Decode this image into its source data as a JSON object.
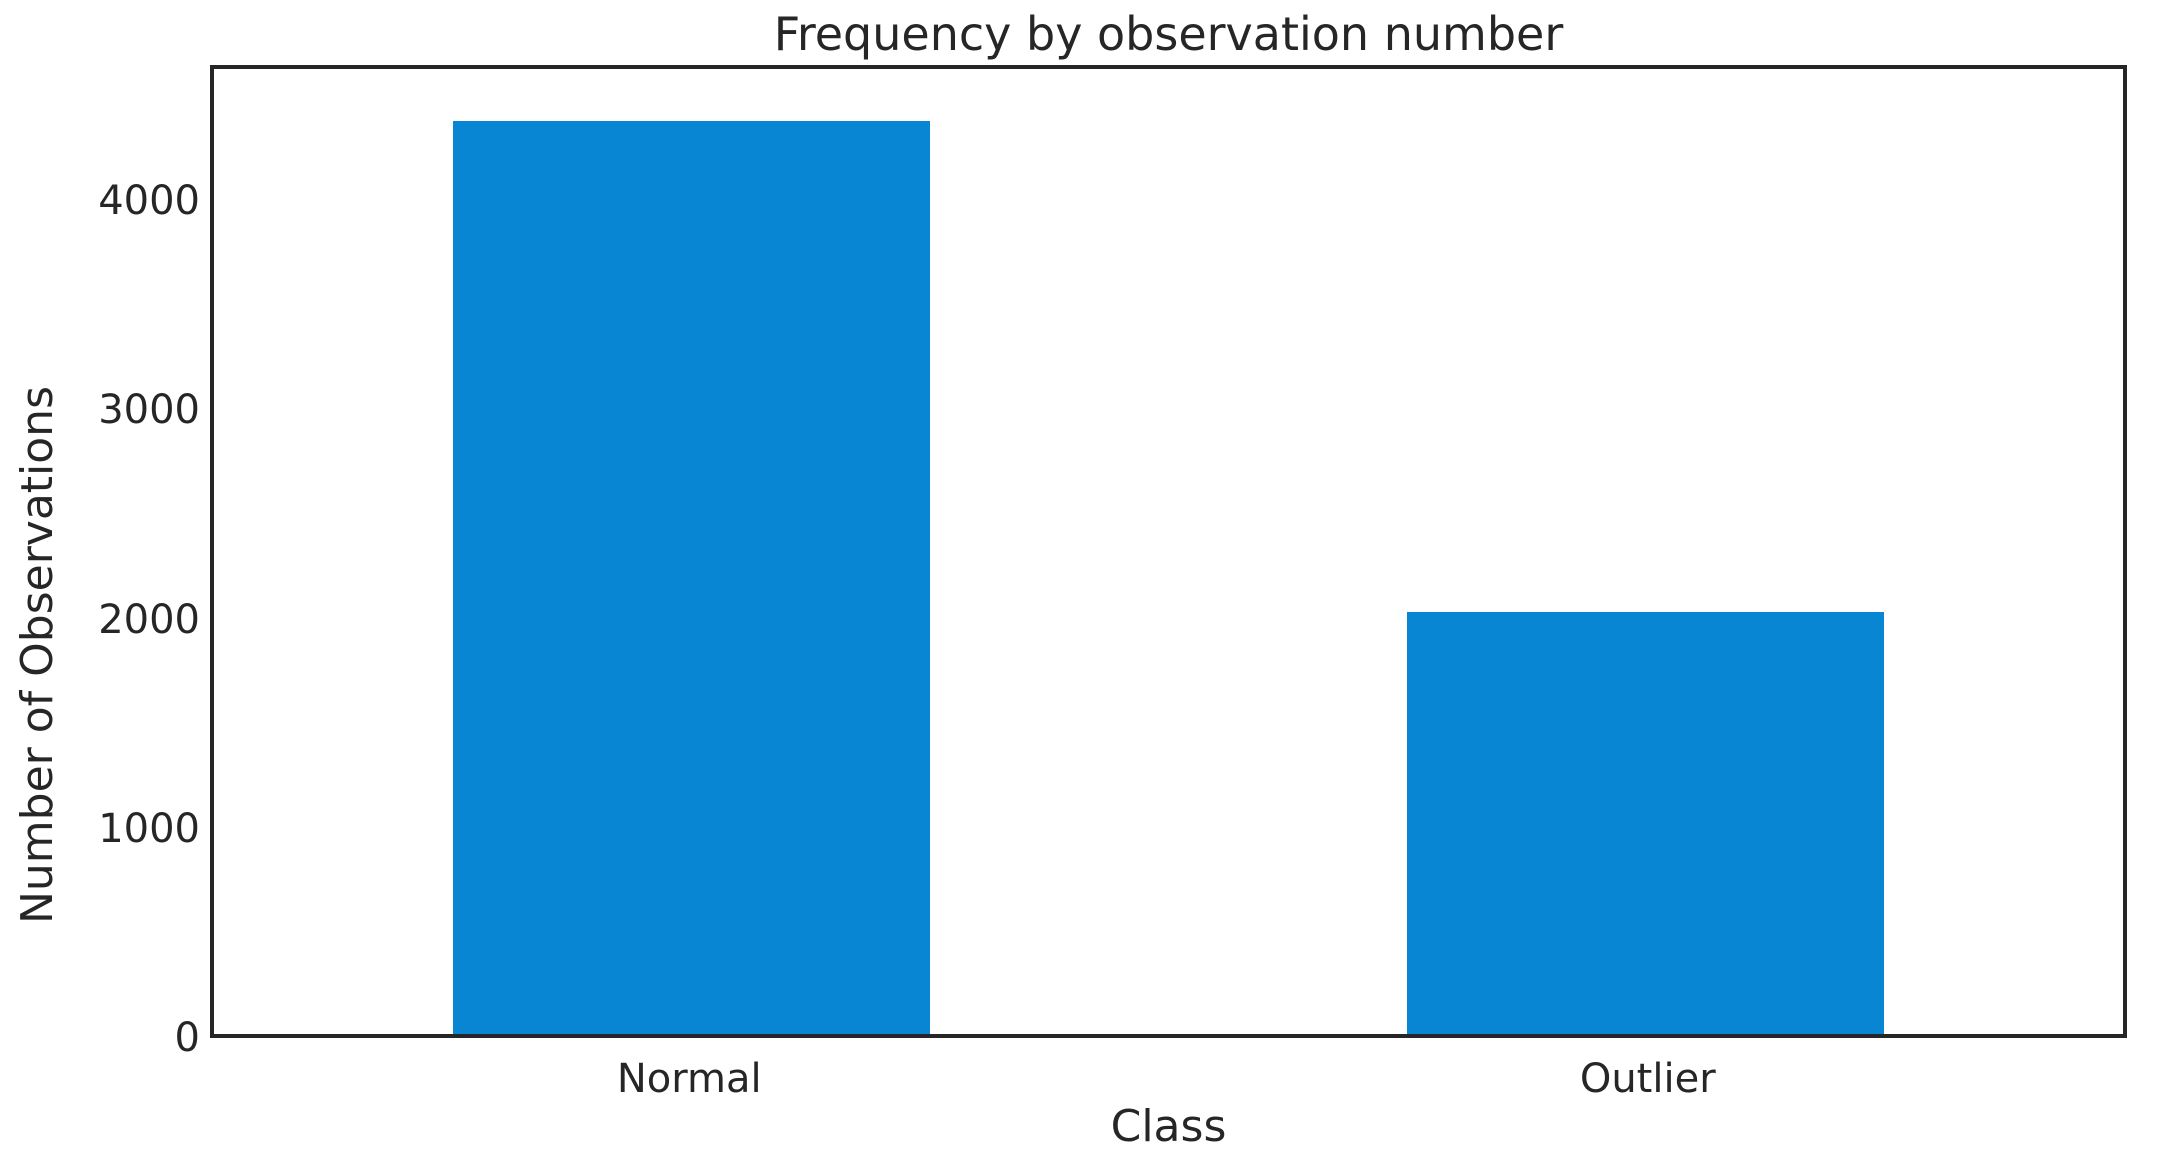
{
  "chart_data": {
    "type": "bar",
    "title": "Frequency by observation number",
    "xlabel": "Class",
    "ylabel": "Number of Observations",
    "categories": [
      "Normal",
      "Outlier"
    ],
    "values": [
      4400,
      2035
    ],
    "yticks": [
      0,
      1000,
      2000,
      3000,
      4000
    ],
    "ylim": [
      0,
      4650
    ],
    "bar_width_fraction": 0.5,
    "grid": false,
    "legend": "none",
    "colors": {
      "bar": "#0886d4",
      "spine": "#262626",
      "text": "#262626",
      "background": "#ffffff"
    }
  }
}
